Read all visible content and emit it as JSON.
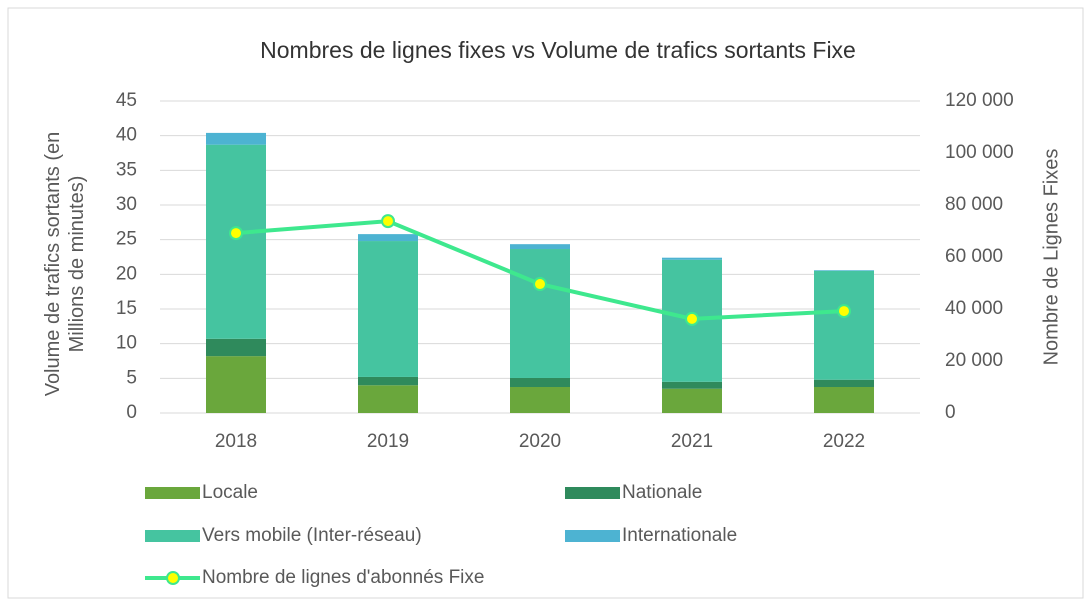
{
  "chart_data": {
    "type": "bar",
    "title": "Nombres de lignes fixes vs Volume de trafics sortants Fixe",
    "y_label": "Volume de trafics sortants (en Millions de minutes)",
    "y2_label": "Nombre de Lignes Fixes",
    "categories": [
      "2018",
      "2019",
      "2020",
      "2021",
      "2022"
    ],
    "stacked": true,
    "series": [
      {
        "name": "Locale",
        "color": "#6aa73c",
        "values": [
          8.2,
          4.0,
          3.75,
          3.5,
          3.75
        ]
      },
      {
        "name": "Nationale",
        "color": "#2f8a5c",
        "values": [
          2.5,
          1.2,
          1.3,
          1.0,
          1.05
        ]
      },
      {
        "name": "Vers mobile (Inter-réseau)",
        "color": "#45c4a0",
        "values": [
          28.0,
          19.6,
          18.6,
          17.6,
          15.7
        ]
      },
      {
        "name": "Internationale",
        "color": "#4db3d2",
        "values": [
          1.7,
          1.0,
          0.7,
          0.3,
          0.1
        ]
      },
      {
        "name": "Nombre de lignes d'abonnés Fixe",
        "type": "line",
        "axis": "y2",
        "color": "#3ee88e",
        "marker_color": "#ffff00",
        "values": [
          69200,
          73800,
          49600,
          36200,
          39200
        ]
      }
    ],
    "ylim": [
      0,
      45
    ],
    "yticks": [
      0,
      5,
      10,
      15,
      20,
      25,
      30,
      35,
      40,
      45
    ],
    "y2lim": [
      0,
      120000
    ],
    "y2ticks": [
      0,
      {
        "value": 20000,
        "label": "20 000"
      },
      {
        "value": 40000,
        "label": "40 000"
      },
      {
        "value": 60000,
        "label": "60 000"
      },
      {
        "value": 80000,
        "label": "80 000"
      },
      {
        "value": 100000,
        "label": "100 000"
      },
      {
        "value": 120000,
        "label": "120 000"
      }
    ],
    "grid": true,
    "legend": "bottom"
  }
}
